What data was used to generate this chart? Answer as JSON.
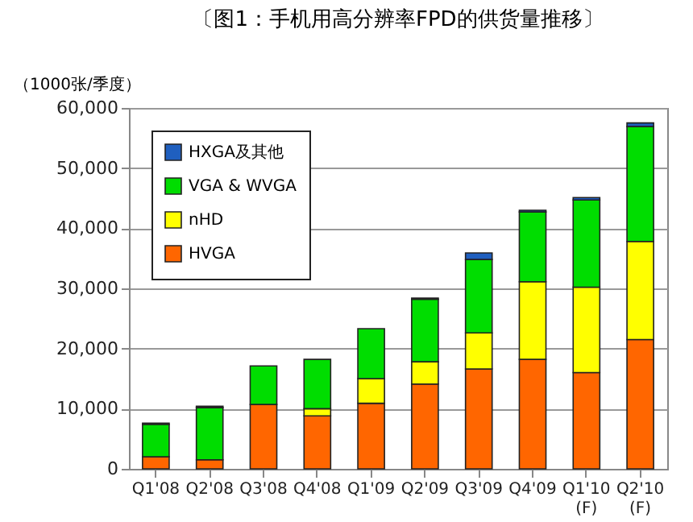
{
  "chart_data": {
    "type": "bar",
    "stacked": true,
    "title": "〔图1：手机用高分辨率FPD的供货量推移〕",
    "ylabel": "（1000张/季度）",
    "categories": [
      "Q1'08",
      "Q2'08",
      "Q3'08",
      "Q4'08",
      "Q1'09",
      "Q2'09",
      "Q3'09",
      "Q4'09",
      "Q1'10\n(F)",
      "Q2'10\n(F)"
    ],
    "series": [
      {
        "name": "HVGA",
        "color": "#ff6600",
        "values": [
          2000,
          1500,
          10700,
          8800,
          10900,
          14100,
          16600,
          18200,
          16000,
          21500
        ]
      },
      {
        "name": "nHD",
        "color": "#ffff00",
        "values": [
          null,
          null,
          null,
          1200,
          4100,
          3700,
          6000,
          12900,
          14200,
          16300
        ]
      },
      {
        "name": "VGA & WVGA",
        "color": "#00dd00",
        "values": [
          5400,
          8700,
          6400,
          8200,
          8300,
          10400,
          12200,
          11600,
          14500,
          19100
        ]
      },
      {
        "name": "HXGA及其他",
        "color": "#1f5fbf",
        "values": [
          200,
          200,
          null,
          null,
          null,
          200,
          1100,
          300,
          400,
          600
        ]
      }
    ],
    "ylim": [
      0,
      60000
    ],
    "yticks": [
      0,
      {
        "value": 10000,
        "label": "10,000"
      },
      {
        "value": 20000,
        "label": "20,000"
      },
      {
        "value": 30000,
        "label": "30,000"
      },
      {
        "value": 40000,
        "label": "40,000"
      },
      {
        "value": 50000,
        "label": "50,000"
      },
      {
        "value": 60000,
        "label": "60,000"
      }
    ],
    "grid": "y",
    "legend": "top left"
  }
}
